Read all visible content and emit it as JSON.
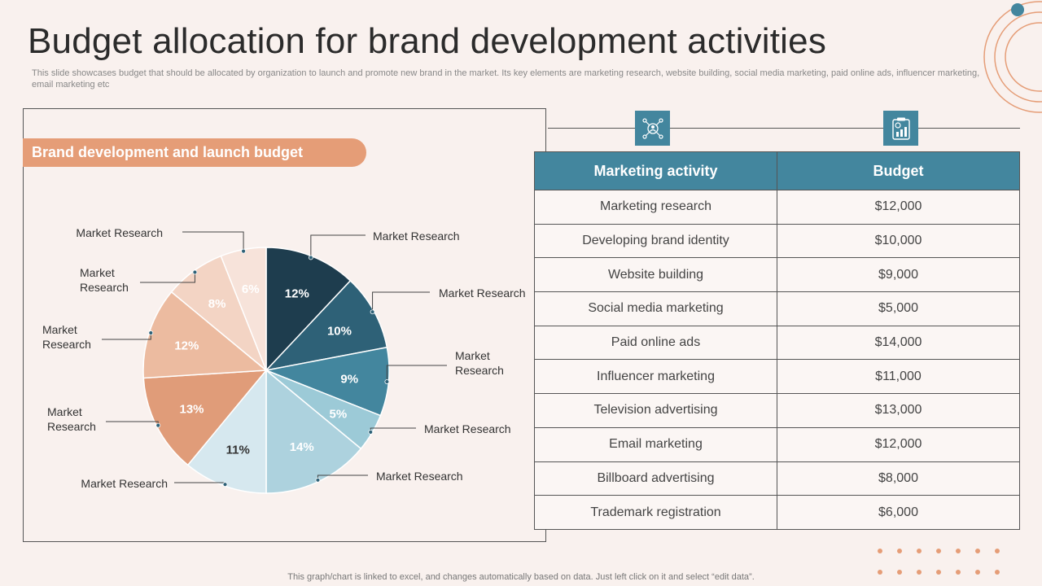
{
  "page": {
    "title": "Budget allocation for brand development activities",
    "subtitle": "This slide showcases budget that should be allocated by organization to launch and promote new brand in the market. Its key elements are marketing research, website building, social media marketing, paid online ads, influencer marketing, email marketing etc",
    "footer": "This graph/chart is linked to excel,  and changes automatically based on data. Just left click on it and select “edit data”."
  },
  "colors": {
    "accent": "#e59d77",
    "teal": "#43869e",
    "background": "#f9f1ee"
  },
  "chart_panel": {
    "heading": "Brand development and launch budget"
  },
  "chart_data": {
    "type": "pie",
    "title": "Brand development and launch budget",
    "slices": [
      {
        "label": "Market Research",
        "value": 12,
        "display": "12%",
        "color": "#1e3d4e",
        "text_color": "#ffffff"
      },
      {
        "label": "Market Research",
        "value": 10,
        "display": "10%",
        "color": "#2e6177",
        "text_color": "#ffffff"
      },
      {
        "label": "Market Research",
        "value": 9,
        "display": "9%",
        "color": "#43869e",
        "text_color": "#ffffff"
      },
      {
        "label": "Market Research",
        "value": 5,
        "display": "5%",
        "color": "#9ccad7",
        "text_color": "#ffffff"
      },
      {
        "label": "Market Research",
        "value": 14,
        "display": "14%",
        "color": "#add2de",
        "text_color": "#ffffff"
      },
      {
        "label": "Market Research",
        "value": 11,
        "display": "11%",
        "color": "#d6e8ef",
        "text_color": "#333333"
      },
      {
        "label": "Market Research",
        "value": 13,
        "display": "13%",
        "color": "#e09c79",
        "text_color": "#ffffff"
      },
      {
        "label": "Market Research",
        "value": 12,
        "display": "12%",
        "color": "#ecbba0",
        "text_color": "#ffffff"
      },
      {
        "label": "Market Research",
        "value": 8,
        "display": "8%",
        "color": "#f3d4c4",
        "text_color": "#ffffff"
      },
      {
        "label": "Market Research",
        "value": 6,
        "display": "6%",
        "color": "#f7e3da",
        "text_color": "#ffffff"
      }
    ]
  },
  "table": {
    "icons": [
      "network-users-icon",
      "clipboard-chart-icon"
    ],
    "headers": [
      "Marketing activity",
      "Budget"
    ],
    "rows": [
      [
        "Marketing research",
        "$12,000"
      ],
      [
        "Developing brand identity",
        "$10,000"
      ],
      [
        "Website building",
        "$9,000"
      ],
      [
        "Social media marketing",
        "$5,000"
      ],
      [
        "Paid online ads",
        "$14,000"
      ],
      [
        "Influencer  marketing",
        "$11,000"
      ],
      [
        "Television advertising",
        "$13,000"
      ],
      [
        "Email marketing",
        "$12,000"
      ],
      [
        "Billboard advertising",
        "$8,000"
      ],
      [
        "Trademark registration",
        "$6,000"
      ]
    ]
  }
}
